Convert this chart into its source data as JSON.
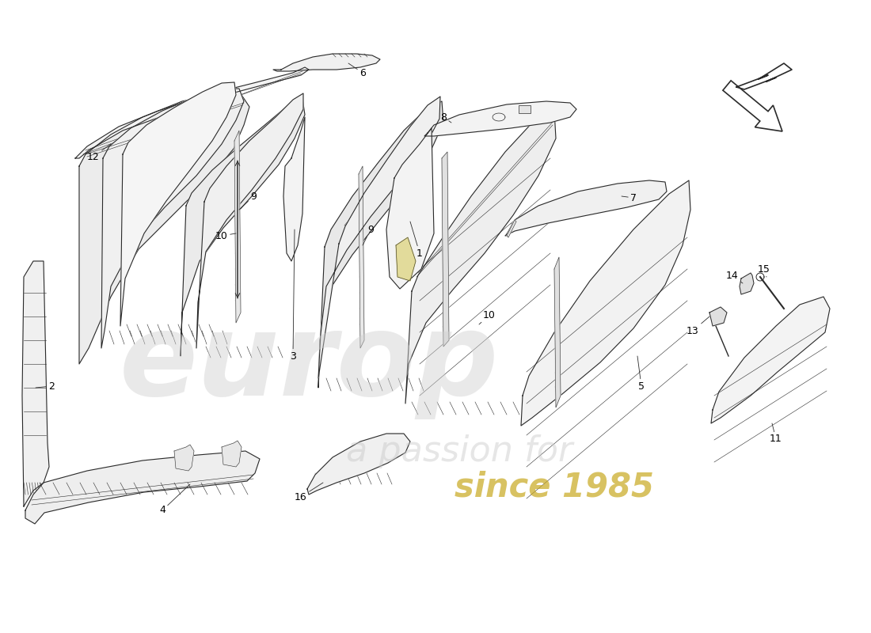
{
  "bg": "#ffffff",
  "lc": "#2a2a2a",
  "fc": "#f5f5f5",
  "lw": 0.8,
  "lt": 0.4,
  "label_fs": 9,
  "wm1": "europ",
  "wm2": "a passion for",
  "wm3": "since 1985",
  "wm1_color": "#d0d0d0",
  "wm2_color": "#c8c8c8",
  "wm3_color": "#c8a820",
  "wm1_alpha": 0.45,
  "wm2_alpha": 0.45,
  "wm3_alpha": 0.7,
  "arrow_fc": "#ffffff",
  "arrow_ec": "#2a2a2a"
}
